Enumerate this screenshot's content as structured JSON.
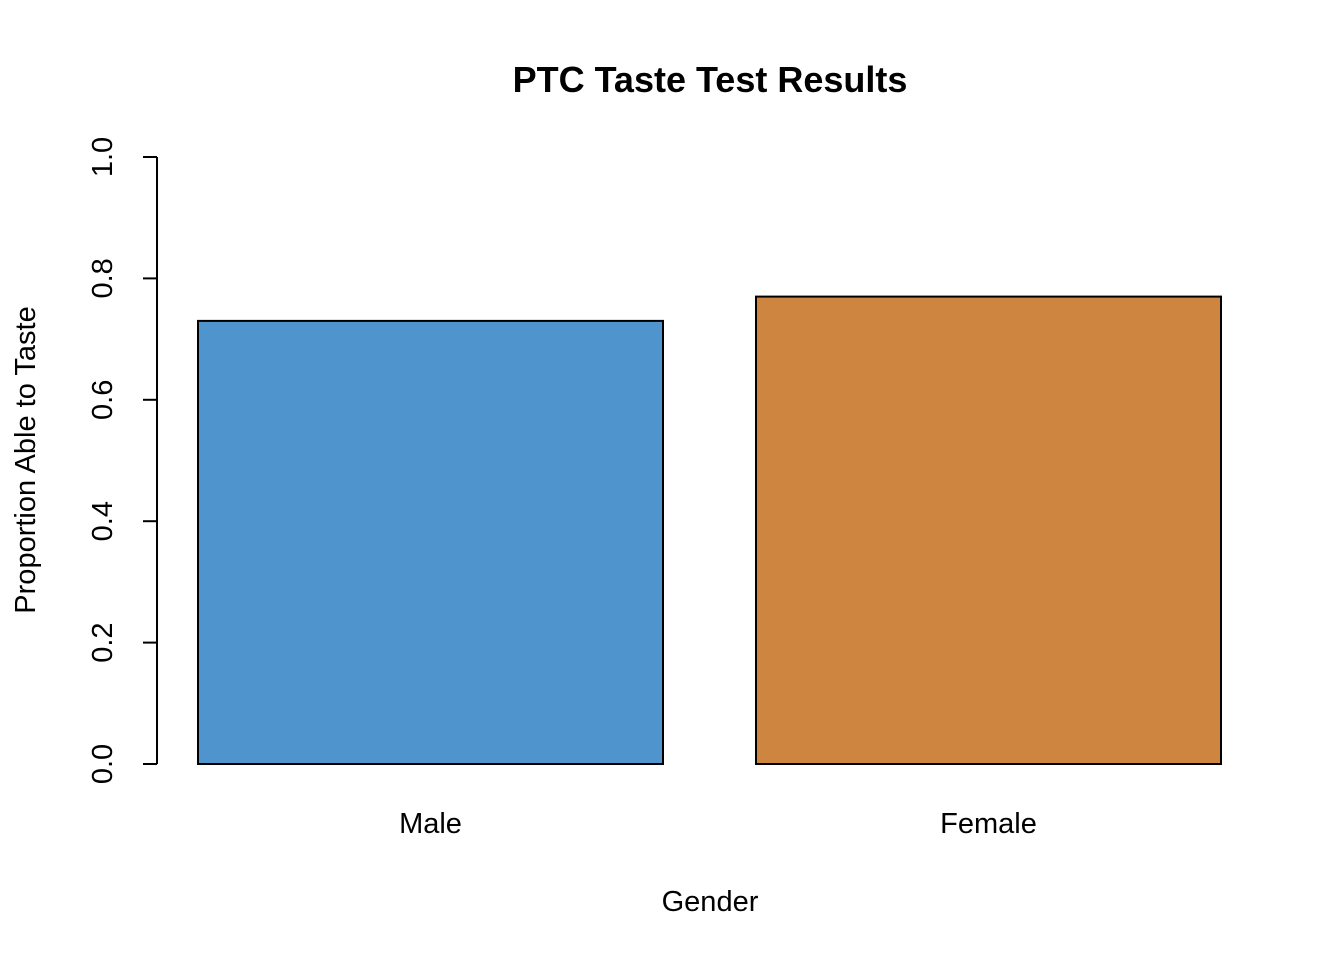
{
  "chart_data": {
    "type": "bar",
    "title": "PTC Taste Test Results",
    "xlabel": "Gender",
    "ylabel": "Proportion Able to Taste",
    "categories": [
      "Male",
      "Female"
    ],
    "values": [
      0.73,
      0.77
    ],
    "colors": [
      "#4f94cd",
      "#cd853f"
    ],
    "bar_border_color": "#000000",
    "ylim": [
      0,
      1.0
    ],
    "yticks": [
      0.0,
      0.2,
      0.4,
      0.6,
      0.8,
      1.0
    ],
    "ytick_labels": [
      "0.0",
      "0.2",
      "0.4",
      "0.6",
      "0.8",
      "1.0"
    ],
    "grid": false,
    "legend": "none"
  }
}
